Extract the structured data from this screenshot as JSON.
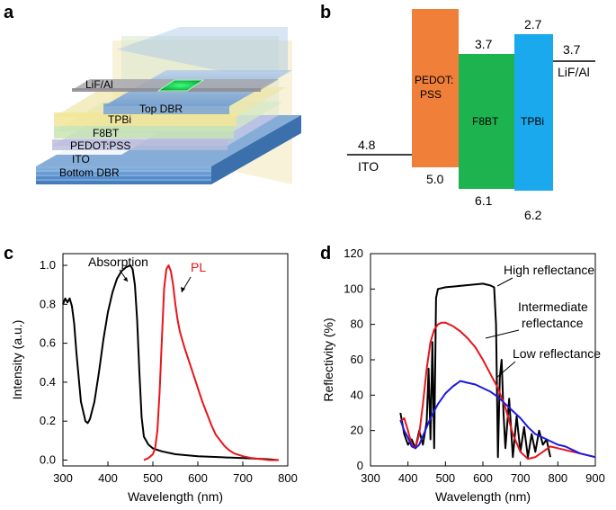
{
  "panel_labels": [
    "a",
    "b",
    "c",
    "d"
  ],
  "panel_a": {
    "layers": [
      "LiF/Al",
      "Top DBR",
      "TPBi",
      "F8BT",
      "PEDOT:PSS",
      "ITO",
      "Bottom DBR"
    ]
  },
  "panel_b": {
    "left_electrode": {
      "name": "ITO",
      "level": "4.8"
    },
    "right_electrode": {
      "name": "LiF/Al",
      "level": "3.7"
    },
    "materials": [
      {
        "name": "PEDOT:\nPSS",
        "top": "",
        "bottom": "5.0",
        "color": "#ef7f39"
      },
      {
        "name": "F8BT",
        "top": "3.7",
        "bottom": "6.1",
        "color": "#1db34f"
      },
      {
        "name": "TPBi",
        "top": "2.7",
        "bottom": "6.2",
        "color": "#1aa9ec"
      }
    ]
  },
  "chart_data": [
    {
      "type": "line",
      "panel": "c",
      "xlabel": "Wavelength (nm)",
      "ylabel": "Intensity (a.u.)",
      "xlim": [
        300,
        800
      ],
      "ylim": [
        0,
        1.0
      ],
      "xticks": [
        300,
        400,
        500,
        600,
        700,
        800
      ],
      "yticks": [
        0.0,
        0.2,
        0.4,
        0.6,
        0.8,
        1.0
      ],
      "xtick_labels": [
        "300",
        "400",
        "500",
        "600",
        "700",
        "800"
      ],
      "ytick_labels": [
        "0.0",
        "0.2",
        "0.4",
        "0.6",
        "0.8",
        "1.0"
      ],
      "series": [
        {
          "name": "Absorption",
          "color": "#000000",
          "x": [
            300,
            305,
            310,
            315,
            320,
            325,
            330,
            340,
            350,
            355,
            360,
            370,
            380,
            390,
            400,
            410,
            420,
            430,
            440,
            450,
            455,
            460,
            465,
            470,
            475,
            480,
            490,
            500,
            520,
            550,
            600,
            650,
            700,
            750,
            780
          ],
          "y": [
            0.8,
            0.83,
            0.81,
            0.83,
            0.79,
            0.7,
            0.55,
            0.3,
            0.2,
            0.19,
            0.21,
            0.3,
            0.45,
            0.62,
            0.76,
            0.86,
            0.93,
            0.97,
            0.99,
            1.0,
            0.98,
            0.9,
            0.72,
            0.45,
            0.22,
            0.12,
            0.08,
            0.06,
            0.045,
            0.03,
            0.02,
            0.015,
            0.01,
            0.005,
            0.0
          ]
        },
        {
          "name": "PL",
          "color": "#e8151b",
          "x": [
            480,
            490,
            500,
            505,
            510,
            515,
            520,
            525,
            530,
            535,
            540,
            545,
            550,
            555,
            560,
            570,
            580,
            590,
            600,
            610,
            620,
            630,
            640,
            650,
            660,
            670,
            680,
            700,
            720,
            740,
            760,
            780
          ],
          "y": [
            0.0,
            0.01,
            0.03,
            0.06,
            0.15,
            0.35,
            0.62,
            0.88,
            0.98,
            1.0,
            0.97,
            0.9,
            0.8,
            0.72,
            0.66,
            0.58,
            0.51,
            0.44,
            0.37,
            0.3,
            0.24,
            0.18,
            0.13,
            0.1,
            0.07,
            0.05,
            0.035,
            0.02,
            0.01,
            0.005,
            0.0,
            0.0
          ]
        }
      ],
      "annotations": [
        "Absorption",
        "PL"
      ]
    },
    {
      "type": "line",
      "panel": "d",
      "xlabel": "Wavelength (nm)",
      "ylabel": "Reflectivity (%)",
      "xlim": [
        300,
        900
      ],
      "ylim": [
        0,
        120
      ],
      "xticks": [
        300,
        400,
        500,
        600,
        700,
        800,
        900
      ],
      "yticks": [
        0,
        20,
        40,
        60,
        80,
        100,
        120
      ],
      "xtick_labels": [
        "300",
        "400",
        "500",
        "600",
        "700",
        "800",
        "900"
      ],
      "ytick_labels": [
        "0",
        "20",
        "40",
        "60",
        "80",
        "100",
        "120"
      ],
      "series": [
        {
          "name": "High reflectance",
          "color": "#000000",
          "x": [
            380,
            390,
            400,
            410,
            420,
            430,
            440,
            450,
            455,
            460,
            465,
            470,
            475,
            480,
            500,
            550,
            600,
            620,
            630,
            635,
            640,
            645,
            650,
            655,
            660,
            670,
            680,
            690,
            700,
            710,
            720,
            730,
            740,
            750,
            760,
            770,
            780
          ],
          "y": [
            30,
            18,
            12,
            15,
            10,
            20,
            12,
            25,
            55,
            15,
            70,
            10,
            95,
            100,
            101,
            102,
            103,
            102,
            101,
            80,
            5,
            50,
            60,
            30,
            10,
            38,
            5,
            28,
            8,
            22,
            5,
            18,
            8,
            20,
            12,
            15,
            5
          ]
        },
        {
          "name": "Intermediate reflectance",
          "color": "#e8151b",
          "x": [
            380,
            390,
            400,
            410,
            420,
            430,
            440,
            450,
            460,
            470,
            480,
            490,
            500,
            520,
            540,
            560,
            580,
            600,
            620,
            640,
            660,
            680,
            700,
            720,
            740,
            760,
            780,
            800,
            820,
            840,
            860,
            880,
            900
          ],
          "y": [
            25,
            27,
            20,
            12,
            10,
            18,
            35,
            55,
            70,
            77,
            80,
            81,
            81,
            79,
            76,
            72,
            67,
            60,
            52,
            44,
            33,
            18,
            8,
            4,
            5,
            8,
            11,
            10,
            9,
            8,
            7,
            6,
            5
          ]
        },
        {
          "name": "Low reflectance",
          "color": "#1a1adf",
          "x": [
            380,
            390,
            400,
            410,
            420,
            430,
            440,
            450,
            460,
            470,
            480,
            490,
            500,
            520,
            540,
            560,
            580,
            600,
            620,
            640,
            660,
            680,
            700,
            720,
            740,
            760,
            780,
            800,
            820,
            840,
            860,
            880,
            900
          ],
          "y": [
            26,
            20,
            16,
            11,
            10,
            12,
            17,
            22,
            27,
            31,
            35,
            38,
            41,
            45,
            48,
            47,
            46,
            44,
            42,
            39,
            35,
            31,
            27,
            22,
            18,
            16,
            14,
            12,
            11,
            9,
            7,
            6,
            5
          ]
        }
      ],
      "annotations": [
        "High reflectance",
        "Intermediate\nreflectance",
        "Low reflectance"
      ]
    }
  ]
}
